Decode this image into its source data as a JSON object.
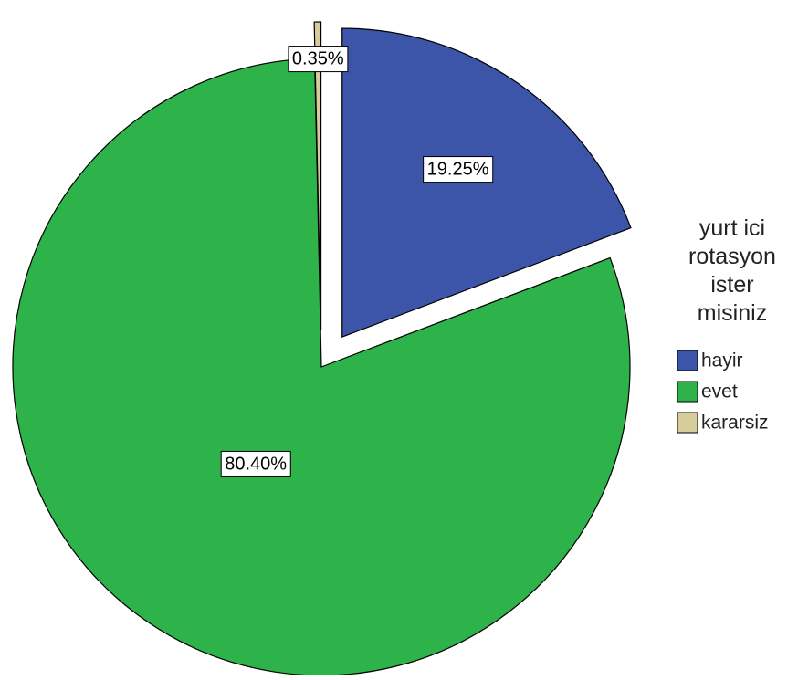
{
  "chart_data": {
    "type": "pie",
    "legend": {
      "title_lines": [
        "yurt ici",
        "rotasyon",
        "ister",
        "misiniz"
      ],
      "placement": "right"
    },
    "slices": [
      {
        "label": "hayir",
        "value": 19.25,
        "display": "19.25%",
        "color": "#3d55a8",
        "exploded": true
      },
      {
        "label": "evet",
        "value": 80.4,
        "display": "80.40%",
        "color": "#2db34a",
        "exploded": false
      },
      {
        "label": "kararsiz",
        "value": 0.35,
        "display": "0.35%",
        "color": "#d6cc9c",
        "exploded": true
      }
    ],
    "start_angle_deg": 0,
    "direction": "clockwise",
    "edge_color": "#000000"
  }
}
